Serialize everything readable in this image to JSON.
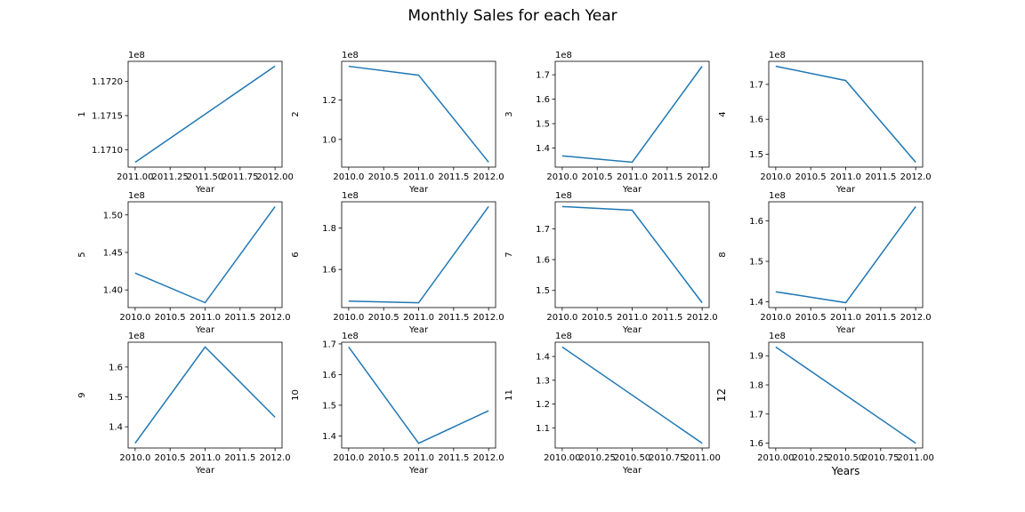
{
  "figure": {
    "title": "Monthly Sales for each Year"
  },
  "colors": {
    "line": "#1f77b4",
    "axis": "#000000"
  },
  "chart_data": [
    {
      "type": "line",
      "ylabel": "1",
      "xlabel": "Year",
      "offset_text": "1e8",
      "x": [
        2011,
        2012
      ],
      "y": [
        1.17082,
        1.17222
      ],
      "xticks": [
        "2011.00",
        "2011.25",
        "2011.50",
        "2011.75",
        "2012.00"
      ],
      "xtick_values": [
        2011,
        2011.25,
        2011.5,
        2011.75,
        2012
      ],
      "yticks": [
        "1.1710",
        "1.1715",
        "1.1720"
      ],
      "ytick_values": [
        1.171,
        1.1715,
        1.172
      ],
      "xlim": [
        2010.95,
        2012.05
      ],
      "ylim": [
        1.17075,
        1.17229
      ]
    },
    {
      "type": "line",
      "ylabel": "2",
      "xlabel": "Year",
      "offset_text": "1e8",
      "x": [
        2010,
        2011,
        2012
      ],
      "y": [
        1.37,
        1.325,
        0.885
      ],
      "xticks": [
        "2010.0",
        "2010.5",
        "2011.0",
        "2011.5",
        "2012.0"
      ],
      "xtick_values": [
        2010,
        2010.5,
        2011,
        2011.5,
        2012
      ],
      "yticks": [
        "1.0",
        "1.2"
      ],
      "ytick_values": [
        1.0,
        1.2
      ],
      "xlim": [
        2009.9,
        2012.1
      ],
      "ylim": [
        0.86,
        1.395
      ]
    },
    {
      "type": "line",
      "ylabel": "3",
      "xlabel": "Year",
      "offset_text": "1e8",
      "x": [
        2010,
        2011,
        2012
      ],
      "y": [
        1.368,
        1.342,
        1.735
      ],
      "xticks": [
        "2010.0",
        "2010.5",
        "2011.0",
        "2011.5",
        "2012.0"
      ],
      "xtick_values": [
        2010,
        2010.5,
        2011,
        2011.5,
        2012
      ],
      "yticks": [
        "1.4",
        "1.5",
        "1.6",
        "1.7"
      ],
      "ytick_values": [
        1.4,
        1.5,
        1.6,
        1.7
      ],
      "xlim": [
        2009.9,
        2012.1
      ],
      "ylim": [
        1.322,
        1.755
      ]
    },
    {
      "type": "line",
      "ylabel": "4",
      "xlabel": "Year",
      "offset_text": "1e8",
      "x": [
        2010,
        2011,
        2012
      ],
      "y": [
        1.752,
        1.711,
        1.477
      ],
      "xticks": [
        "2010.0",
        "2010.5",
        "2011.0",
        "2011.5",
        "2012.0"
      ],
      "xtick_values": [
        2010,
        2010.5,
        2011,
        2011.5,
        2012
      ],
      "yticks": [
        "1.5",
        "1.6",
        "1.7"
      ],
      "ytick_values": [
        1.5,
        1.6,
        1.7
      ],
      "xlim": [
        2009.9,
        2012.1
      ],
      "ylim": [
        1.463,
        1.766
      ]
    },
    {
      "type": "line",
      "ylabel": "5",
      "xlabel": "Year",
      "offset_text": "1e8",
      "x": [
        2010,
        2011,
        2012
      ],
      "y": [
        1.4225,
        1.383,
        1.511
      ],
      "xticks": [
        "2010.0",
        "2010.5",
        "2011.0",
        "2011.5",
        "2012.0"
      ],
      "xtick_values": [
        2010,
        2010.5,
        2011,
        2011.5,
        2012
      ],
      "yticks": [
        "1.40",
        "1.45",
        "1.50"
      ],
      "ytick_values": [
        1.4,
        1.45,
        1.5
      ],
      "xlim": [
        2009.9,
        2012.1
      ],
      "ylim": [
        1.3765,
        1.5175
      ]
    },
    {
      "type": "line",
      "ylabel": "6",
      "xlabel": "Year",
      "offset_text": "1e8",
      "x": [
        2010,
        2011,
        2012
      ],
      "y": [
        1.447,
        1.439,
        1.904
      ],
      "xticks": [
        "2010.0",
        "2010.5",
        "2011.0",
        "2011.5",
        "2012.0"
      ],
      "xtick_values": [
        2010,
        2010.5,
        2011,
        2011.5,
        2012
      ],
      "yticks": [
        "1.6",
        "1.8"
      ],
      "ytick_values": [
        1.6,
        1.8
      ],
      "xlim": [
        2009.9,
        2012.1
      ],
      "ylim": [
        1.416,
        1.927
      ]
    },
    {
      "type": "line",
      "ylabel": "7",
      "xlabel": "Year",
      "offset_text": "1e8",
      "x": [
        2010,
        2011,
        2012
      ],
      "y": [
        1.772,
        1.76,
        1.46
      ],
      "xticks": [
        "2010.0",
        "2010.5",
        "2011.0",
        "2011.5",
        "2012.0"
      ],
      "xtick_values": [
        2010,
        2010.5,
        2011,
        2011.5,
        2012
      ],
      "yticks": [
        "1.5",
        "1.6",
        "1.7"
      ],
      "ytick_values": [
        1.5,
        1.6,
        1.7
      ],
      "xlim": [
        2009.9,
        2012.1
      ],
      "ylim": [
        1.4445,
        1.7875
      ]
    },
    {
      "type": "line",
      "ylabel": "8",
      "xlabel": "Year",
      "offset_text": "1e8",
      "x": [
        2010,
        2011,
        2012
      ],
      "y": [
        1.425,
        1.398,
        1.635
      ],
      "xticks": [
        "2010.0",
        "2010.5",
        "2011.0",
        "2011.5",
        "2012.0"
      ],
      "xtick_values": [
        2010,
        2010.5,
        2011,
        2011.5,
        2012
      ],
      "yticks": [
        "1.4",
        "1.5",
        "1.6"
      ],
      "ytick_values": [
        1.4,
        1.5,
        1.6
      ],
      "xlim": [
        2009.9,
        2012.1
      ],
      "ylim": [
        1.386,
        1.647
      ]
    },
    {
      "type": "line",
      "ylabel": "9",
      "xlabel": "Year",
      "offset_text": "1e8",
      "x": [
        2010,
        2011,
        2012
      ],
      "y": [
        1.345,
        1.667,
        1.432
      ],
      "xticks": [
        "2010.0",
        "2010.5",
        "2011.0",
        "2011.5",
        "2012.0"
      ],
      "xtick_values": [
        2010,
        2010.5,
        2011,
        2011.5,
        2012
      ],
      "yticks": [
        "1.4",
        "1.5",
        "1.6"
      ],
      "ytick_values": [
        1.4,
        1.5,
        1.6
      ],
      "xlim": [
        2009.9,
        2012.1
      ],
      "ylim": [
        1.329,
        1.683
      ]
    },
    {
      "type": "line",
      "ylabel": "10",
      "xlabel": "Year",
      "offset_text": "1e8",
      "x": [
        2010,
        2011,
        2012
      ],
      "y": [
        1.69,
        1.376,
        1.482
      ],
      "xticks": [
        "2010.0",
        "2010.5",
        "2011.0",
        "2011.5",
        "2012.0"
      ],
      "xtick_values": [
        2010,
        2010.5,
        2011,
        2011.5,
        2012
      ],
      "yticks": [
        "1.4",
        "1.5",
        "1.6",
        "1.7"
      ],
      "ytick_values": [
        1.4,
        1.5,
        1.6,
        1.7
      ],
      "xlim": [
        2009.9,
        2012.1
      ],
      "ylim": [
        1.3605,
        1.7055
      ]
    },
    {
      "type": "line",
      "ylabel": "11",
      "xlabel": "Year",
      "offset_text": "1e8",
      "x": [
        2010,
        2011
      ],
      "y": [
        1.44,
        1.035
      ],
      "xticks": [
        "2010.00",
        "2010.25",
        "2010.50",
        "2010.75",
        "2011.00"
      ],
      "xtick_values": [
        2010,
        2010.25,
        2010.5,
        2010.75,
        2011
      ],
      "yticks": [
        "1.1",
        "1.2",
        "1.3",
        "1.4"
      ],
      "ytick_values": [
        1.1,
        1.2,
        1.3,
        1.4
      ],
      "xlim": [
        2009.95,
        2011.05
      ],
      "ylim": [
        1.015,
        1.46
      ]
    },
    {
      "type": "line",
      "ylabel": "12",
      "xlabel": "Years",
      "offset_text": "1e8",
      "large_labels": true,
      "x": [
        2010,
        2011
      ],
      "y": [
        1.93,
        1.6
      ],
      "xticks": [
        "2010.00",
        "2010.25",
        "2010.50",
        "2010.75",
        "2011.00"
      ],
      "xtick_values": [
        2010,
        2010.25,
        2010.5,
        2010.75,
        2011
      ],
      "yticks": [
        "1.6",
        "1.7",
        "1.8",
        "1.9"
      ],
      "ytick_values": [
        1.6,
        1.7,
        1.8,
        1.9
      ],
      "xlim": [
        2009.95,
        2011.05
      ],
      "ylim": [
        1.5835,
        1.9465
      ]
    }
  ]
}
